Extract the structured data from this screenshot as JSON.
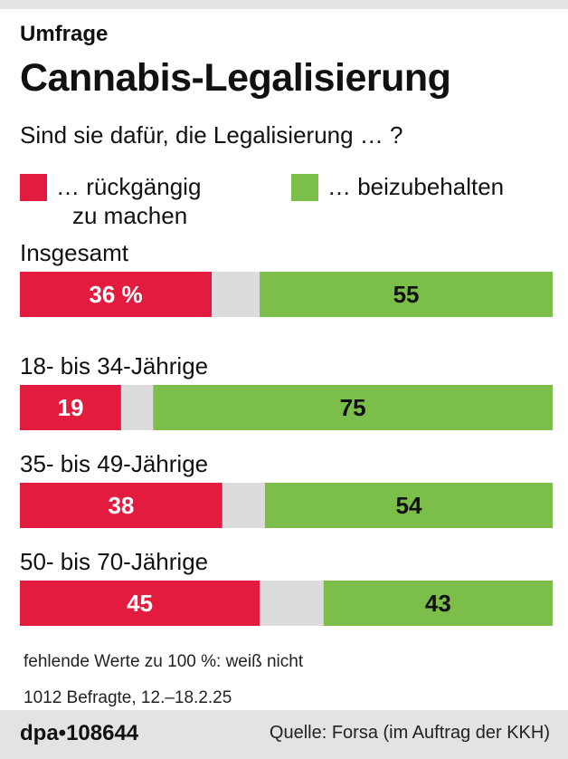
{
  "kicker": "Umfrage",
  "title": "Cannabis-Legalisierung",
  "subtitle": "Sind sie dafür, die Legalisierung … ?",
  "colors": {
    "red": "#e31b3f",
    "green": "#7bbf4a",
    "gap": "#dcdcdc"
  },
  "legend": {
    "red_line1": "… rückgängig",
    "red_line2": "zu machen",
    "green": "… beizubehalten"
  },
  "chart_data": {
    "type": "bar",
    "orientation": "horizontal-stacked",
    "unit": "%",
    "total": 100,
    "categories": [
      "Insgesamt",
      "18- bis 34-Jährige",
      "35- bis 49-Jährige",
      "50- bis 70-Jährige"
    ],
    "series": [
      {
        "name": "… rückgängig zu machen",
        "color": "#e31b3f",
        "values": [
          36,
          19,
          38,
          45
        ],
        "labels": [
          "36 %",
          "19",
          "38",
          "45"
        ]
      },
      {
        "name": "… beizubehalten",
        "color": "#7bbf4a",
        "values": [
          55,
          75,
          54,
          43
        ],
        "labels": [
          "55",
          "75",
          "54",
          "43"
        ]
      }
    ],
    "remainder_meaning": "weiß nicht"
  },
  "footnotes": {
    "line1": "fehlende Werte zu 100 %: weiß nicht",
    "line2": "1012 Befragte, 12.–18.2.25"
  },
  "footer": {
    "brand": "dpa•108644",
    "source": "Quelle: Forsa (im Auftrag der KKH)"
  }
}
